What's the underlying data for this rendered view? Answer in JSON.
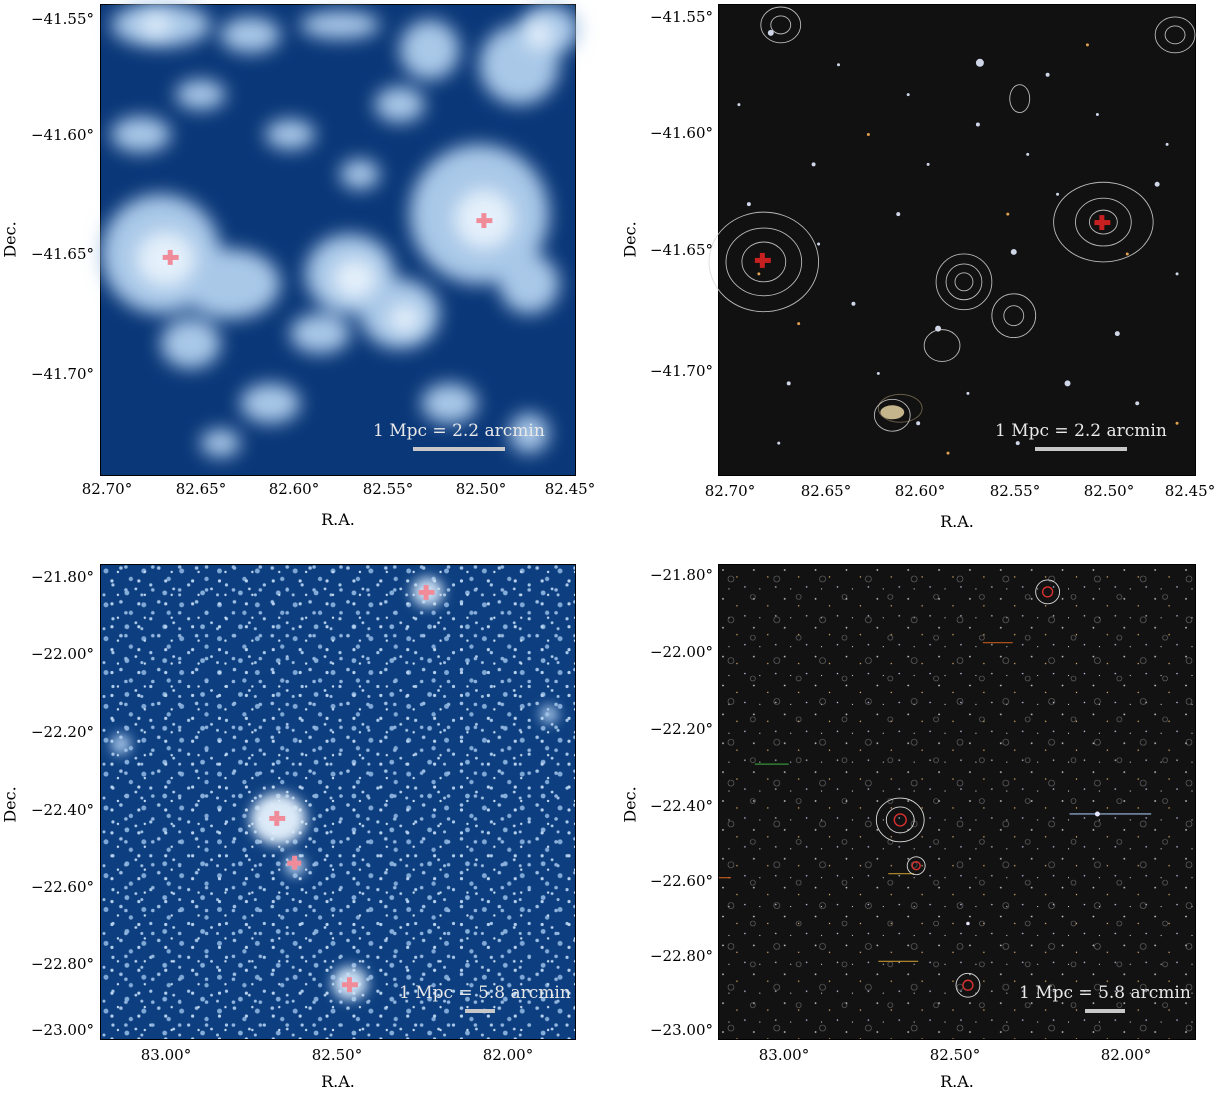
{
  "panels": {
    "tl": {
      "yticks": [
        "−41.55°",
        "−41.60°",
        "−41.65°",
        "−41.70°"
      ],
      "xticks": [
        "82.70°",
        "82.65°",
        "82.60°",
        "82.55°",
        "82.50°",
        "82.45°"
      ],
      "xlabel": "R.A.",
      "ylabel": "Dec.",
      "scale": "1 Mpc = 2.2 arcmin"
    },
    "tr": {
      "yticks": [
        "−41.55°",
        "−41.60°",
        "−41.65°",
        "−41.70°"
      ],
      "xticks": [
        "82.70°",
        "82.65°",
        "82.60°",
        "82.55°",
        "82.50°",
        "82.45°"
      ],
      "xlabel": "R.A.",
      "ylabel": "Dec.",
      "scale": "1 Mpc = 2.2 arcmin"
    },
    "bl": {
      "yticks": [
        "−21.80°",
        "−22.00°",
        "−22.20°",
        "−22.40°",
        "−22.60°",
        "−22.80°",
        "−23.00°"
      ],
      "xticks": [
        "83.00°",
        "82.50°",
        "82.00°"
      ],
      "xlabel": "R.A.",
      "ylabel": "Dec.",
      "scale": "1 Mpc = 5.8 arcmin"
    },
    "br": {
      "yticks": [
        "−21.80°",
        "−22.00°",
        "−22.20°",
        "−22.40°",
        "−22.60°",
        "−22.80°",
        "−23.00°"
      ],
      "xticks": [
        "83.00°",
        "82.50°",
        "82.00°"
      ],
      "xlabel": "R.A.",
      "ylabel": "Dec.",
      "scale": "1 Mpc = 5.8 arcmin"
    }
  },
  "colors": {
    "xray_background": "#0a3778",
    "xray_emission": "#cfe3f5",
    "optical_background": "#101010",
    "marker": "#f08c9a",
    "contour": "#d8d8d8"
  }
}
